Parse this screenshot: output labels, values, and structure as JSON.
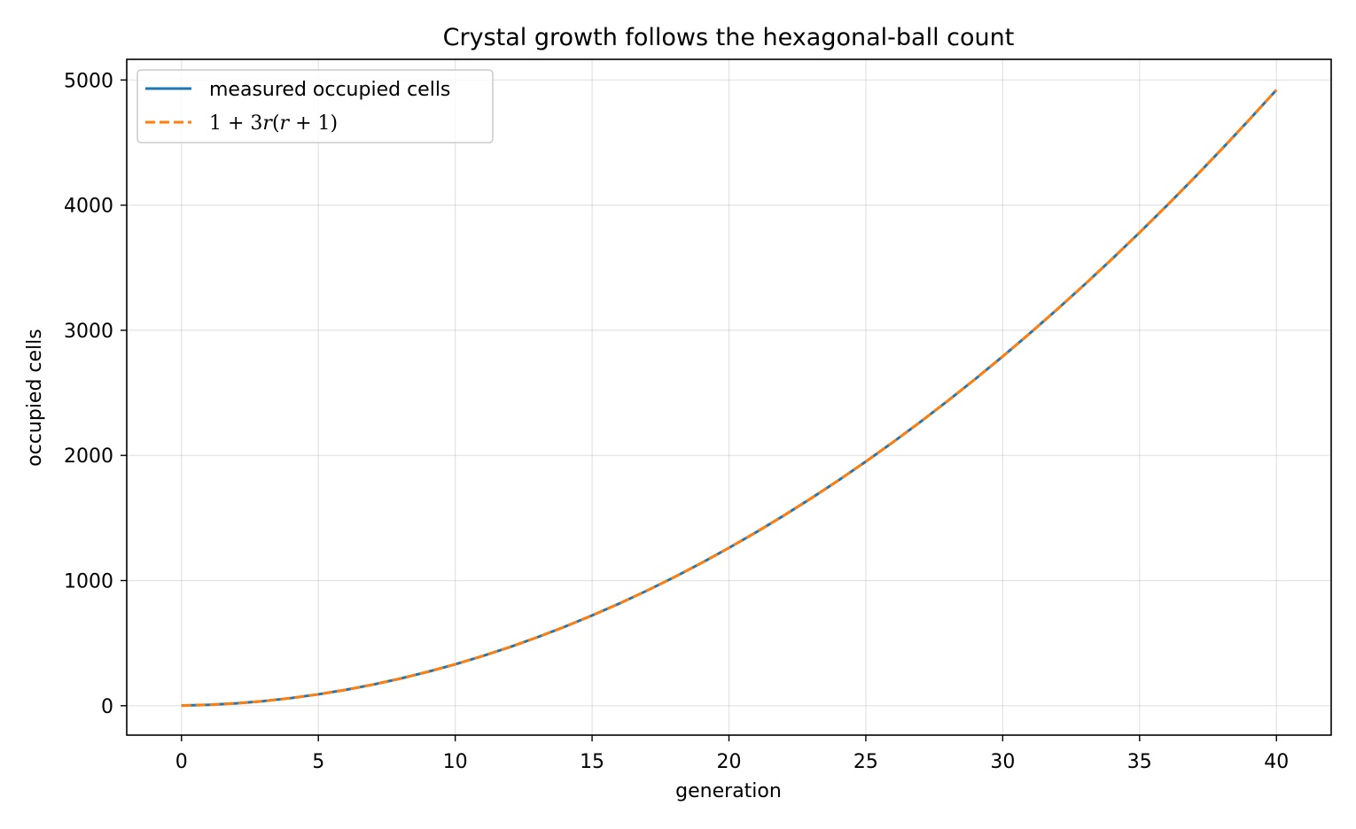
{
  "chart_data": {
    "type": "line",
    "title": "Crystal growth follows the hexagonal-ball count",
    "xlabel": "generation",
    "ylabel": "occupied cells",
    "xlim": [
      -2,
      42
    ],
    "ylim": [
      -235,
      5165
    ],
    "xticks": [
      0,
      5,
      10,
      15,
      20,
      25,
      30,
      35,
      40
    ],
    "xtick_labels": [
      "0",
      "5",
      "10",
      "15",
      "20",
      "25",
      "30",
      "35",
      "40"
    ],
    "yticks": [
      0,
      1000,
      2000,
      3000,
      4000,
      5000
    ],
    "ytick_labels": [
      "0",
      "1000",
      "2000",
      "3000",
      "4000",
      "5000"
    ],
    "grid": true,
    "legend_position": "top-left",
    "x": [
      0,
      1,
      2,
      3,
      4,
      5,
      6,
      7,
      8,
      9,
      10,
      11,
      12,
      13,
      14,
      15,
      16,
      17,
      18,
      19,
      20,
      21,
      22,
      23,
      24,
      25,
      26,
      27,
      28,
      29,
      30,
      31,
      32,
      33,
      34,
      35,
      36,
      37,
      38,
      39,
      40
    ],
    "series": [
      {
        "name": "measured occupied cells",
        "color": "#1f77b4",
        "style": "solid",
        "values": [
          1,
          7,
          19,
          37,
          61,
          91,
          127,
          169,
          217,
          271,
          331,
          397,
          469,
          547,
          631,
          721,
          817,
          919,
          1027,
          1141,
          1261,
          1387,
          1519,
          1657,
          1801,
          1951,
          2107,
          2269,
          2437,
          2611,
          2791,
          2977,
          3169,
          3367,
          3571,
          3781,
          3997,
          4219,
          4447,
          4681,
          4921
        ]
      },
      {
        "name": "1 + 3r(r + 1)",
        "color": "#ff7f0e",
        "style": "dashed",
        "values": [
          1,
          7,
          19,
          37,
          61,
          91,
          127,
          169,
          217,
          271,
          331,
          397,
          469,
          547,
          631,
          721,
          817,
          919,
          1027,
          1141,
          1261,
          1387,
          1519,
          1657,
          1801,
          1951,
          2107,
          2269,
          2437,
          2611,
          2791,
          2977,
          3169,
          3367,
          3571,
          3781,
          3997,
          4219,
          4447,
          4681,
          4921
        ]
      }
    ]
  }
}
